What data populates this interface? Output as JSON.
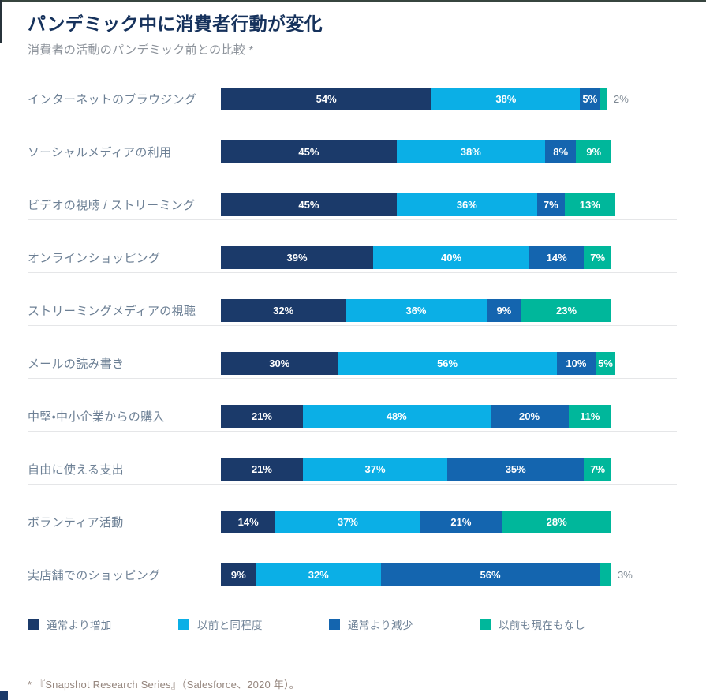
{
  "header": {
    "title": "パンデミック中に消費者行動が変化",
    "subtitle": "消費者の活動のパンデミック前との比較 *"
  },
  "chart_data": {
    "type": "bar",
    "orientation": "horizontal-stacked",
    "title": "パンデミック中に消費者行動が変化",
    "subtitle": "消費者の活動のパンデミック前との比較 *",
    "value_suffix": "%",
    "xlim": [
      0,
      100
    ],
    "grid": false,
    "legend_position": "bottom",
    "outside_label_threshold": 4,
    "categories": [
      "インターネットのブラウジング",
      "ソーシャルメディアの利用",
      "ビデオの視聴 / ストリーミング",
      "オンラインショッピング",
      "ストリーミングメディアの視聴",
      "メールの読み書き",
      "中堅・中小企業からの購入",
      "自由に使える支出",
      "ボランティア活動",
      "実店舗でのショッピング"
    ],
    "series": [
      {
        "name": "通常より増加",
        "color": "#1b3a6a",
        "values": [
          54,
          45,
          45,
          39,
          32,
          30,
          21,
          21,
          14,
          9
        ]
      },
      {
        "name": "以前と同程度",
        "color": "#0bafe6",
        "values": [
          38,
          38,
          36,
          40,
          36,
          56,
          48,
          37,
          37,
          32
        ]
      },
      {
        "name": "通常より減少",
        "color": "#1465af",
        "values": [
          5,
          8,
          7,
          14,
          9,
          10,
          20,
          35,
          21,
          56
        ]
      },
      {
        "name": "以前も現在もなし",
        "color": "#00b79b",
        "values": [
          2,
          9,
          13,
          7,
          23,
          5,
          11,
          7,
          28,
          3
        ]
      }
    ]
  },
  "footer": {
    "source": "* 『Snapshot Research Series』（Salesforce、2020 年）。"
  }
}
